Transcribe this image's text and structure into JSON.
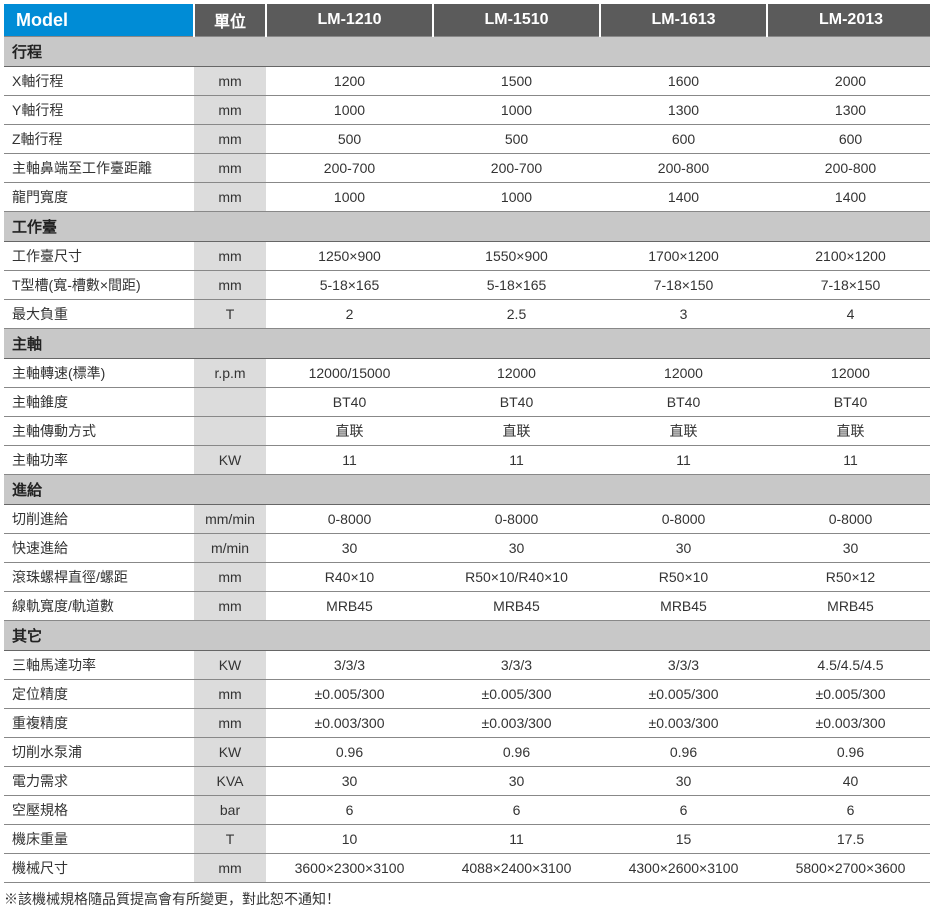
{
  "header": {
    "model_label": "Model",
    "unit_label": "單位",
    "models": [
      "LM-1210",
      "LM-1510",
      "LM-1613",
      "LM-2013"
    ]
  },
  "colors": {
    "header_model_bg": "#008cd6",
    "header_col_bg": "#5b5b5b",
    "header_fg": "#ffffff",
    "section_bg": "#c8c8c8",
    "unit_bg": "#dcdcdc",
    "row_bg": "#ffffff",
    "border": "#888888",
    "text": "#333333"
  },
  "sections": [
    {
      "title": "行程",
      "rows": [
        {
          "label": "X軸行程",
          "unit": "mm",
          "values": [
            "1200",
            "1500",
            "1600",
            "2000"
          ]
        },
        {
          "label": "Y軸行程",
          "unit": "mm",
          "values": [
            "1000",
            "1000",
            "1300",
            "1300"
          ]
        },
        {
          "label": "Z軸行程",
          "unit": "mm",
          "values": [
            "500",
            "500",
            "600",
            "600"
          ]
        },
        {
          "label": "主軸鼻端至工作臺距離",
          "unit": "mm",
          "values": [
            "200-700",
            "200-700",
            "200-800",
            "200-800"
          ]
        },
        {
          "label": "龍門寬度",
          "unit": "mm",
          "values": [
            "1000",
            "1000",
            "1400",
            "1400"
          ]
        }
      ]
    },
    {
      "title": "工作臺",
      "rows": [
        {
          "label": "工作臺尺寸",
          "unit": "mm",
          "values": [
            "1250×900",
            "1550×900",
            "1700×1200",
            "2100×1200"
          ]
        },
        {
          "label": "T型槽(寬-槽數×間距)",
          "unit": "mm",
          "values": [
            "5-18×165",
            "5-18×165",
            "7-18×150",
            "7-18×150"
          ]
        },
        {
          "label": "最大負重",
          "unit": "T",
          "values": [
            "2",
            "2.5",
            "3",
            "4"
          ]
        }
      ]
    },
    {
      "title": "主軸",
      "rows": [
        {
          "label": "主軸轉速(標準)",
          "unit": "r.p.m",
          "values": [
            "12000/15000",
            "12000",
            "12000",
            "12000"
          ]
        },
        {
          "label": "主軸錐度",
          "unit": "",
          "values": [
            "BT40",
            "BT40",
            "BT40",
            "BT40"
          ]
        },
        {
          "label": "主軸傳動方式",
          "unit": "",
          "values": [
            "直联",
            "直联",
            "直联",
            "直联"
          ]
        },
        {
          "label": "主軸功率",
          "unit": "KW",
          "values": [
            "11",
            "11",
            "11",
            "11"
          ]
        }
      ]
    },
    {
      "title": "進給",
      "rows": [
        {
          "label": "切削進給",
          "unit": "mm/min",
          "values": [
            "0-8000",
            "0-8000",
            "0-8000",
            "0-8000"
          ]
        },
        {
          "label": "快速進給",
          "unit": "m/min",
          "values": [
            "30",
            "30",
            "30",
            "30"
          ]
        },
        {
          "label": "滾珠螺桿直徑/螺距",
          "unit": "mm",
          "values": [
            "R40×10",
            "R50×10/R40×10",
            "R50×10",
            "R50×12"
          ]
        },
        {
          "label": "線軌寬度/軌道數",
          "unit": "mm",
          "values": [
            "MRB45",
            "MRB45",
            "MRB45",
            "MRB45"
          ]
        }
      ]
    },
    {
      "title": "其它",
      "rows": [
        {
          "label": "三軸馬達功率",
          "unit": "KW",
          "values": [
            "3/3/3",
            "3/3/3",
            "3/3/3",
            "4.5/4.5/4.5"
          ]
        },
        {
          "label": "定位精度",
          "unit": "mm",
          "values": [
            "±0.005/300",
            "±0.005/300",
            "±0.005/300",
            "±0.005/300"
          ]
        },
        {
          "label": "重複精度",
          "unit": "mm",
          "values": [
            "±0.003/300",
            "±0.003/300",
            "±0.003/300",
            "±0.003/300"
          ]
        },
        {
          "label": "切削水泵浦",
          "unit": "KW",
          "values": [
            "0.96",
            "0.96",
            "0.96",
            "0.96"
          ]
        },
        {
          "label": "電力需求",
          "unit": "KVA",
          "values": [
            "30",
            "30",
            "30",
            "40"
          ]
        },
        {
          "label": "空壓規格",
          "unit": "bar",
          "values": [
            "6",
            "6",
            "6",
            "6"
          ]
        },
        {
          "label": "機床重量",
          "unit": "T",
          "values": [
            "10",
            "11",
            "15",
            "17.5"
          ]
        },
        {
          "label": "機械尺寸",
          "unit": "mm",
          "values": [
            "3600×2300×3100",
            "4088×2400×3100",
            "4300×2600×3100",
            "5800×2700×3600"
          ]
        }
      ]
    }
  ],
  "footnote": "※該機械規格隨品質提高會有所變更，對此恕不通知！"
}
